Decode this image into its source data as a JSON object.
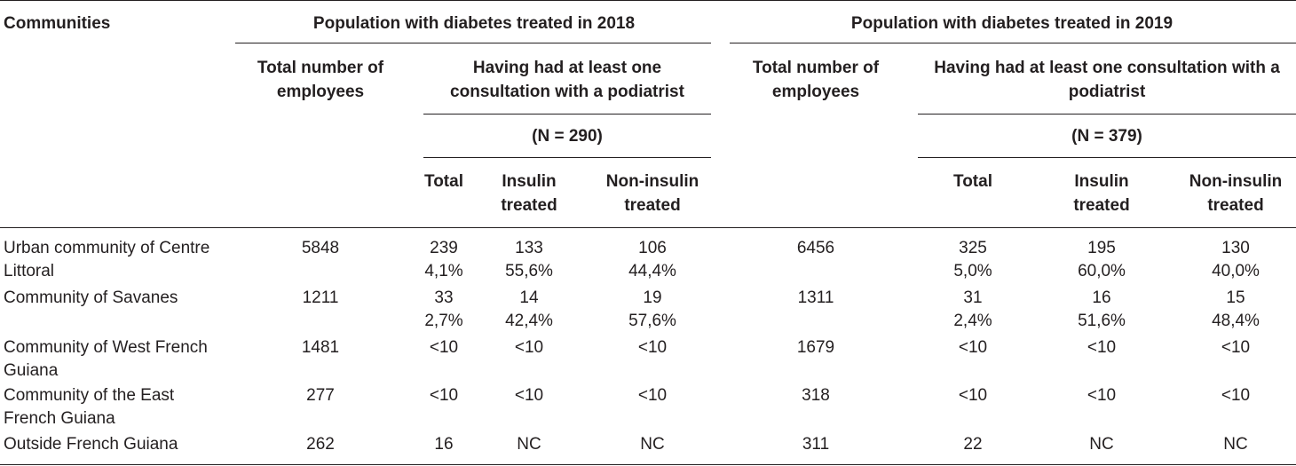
{
  "headers": {
    "communities": "Communities",
    "group_2018": "Population with diabetes treated in 2018",
    "group_2019": "Population with diabetes treated in 2019",
    "total_employees_line1": "Total number of",
    "total_employees_line2": "employees",
    "consult_2018_line1": "Having had at least one",
    "consult_2018_line2": "consultation with a podiatrist",
    "consult_2019_line1": "Having had at least one consultation with a",
    "consult_2019_line2": "podiatrist",
    "n_2018": "(N = 290)",
    "n_2019": "(N = 379)",
    "total": "Total",
    "insulin_line1": "Insulin",
    "insulin_line2": "treated",
    "noninsulin_line1": "Non-insulin",
    "noninsulin_line2": "treated"
  },
  "rows": [
    {
      "name_line1": "Urban community of Centre",
      "name_line2": "Littoral",
      "emp_2018": "5848",
      "tot_2018": "239",
      "tot_2018_pct": "4,1%",
      "ins_2018": "133",
      "ins_2018_pct": "55,6%",
      "non_2018": "106",
      "non_2018_pct": "44,4%",
      "emp_2019": "6456",
      "tot_2019": "325",
      "tot_2019_pct": "5,0%",
      "ins_2019": "195",
      "ins_2019_pct": "60,0%",
      "non_2019": "130",
      "non_2019_pct": "40,0%"
    },
    {
      "name_line1": "Community of Savanes",
      "name_line2": "",
      "emp_2018": "1211",
      "tot_2018": "33",
      "tot_2018_pct": "2,7%",
      "ins_2018": "14",
      "ins_2018_pct": "42,4%",
      "non_2018": "19",
      "non_2018_pct": "57,6%",
      "emp_2019": "1311",
      "tot_2019": "31",
      "tot_2019_pct": "2,4%",
      "ins_2019": "16",
      "ins_2019_pct": "51,6%",
      "non_2019": "15",
      "non_2019_pct": "48,4%"
    },
    {
      "name_line1": "Community of West French",
      "name_line2": "Guiana",
      "emp_2018": "1481",
      "tot_2018": "<10",
      "tot_2018_pct": "",
      "ins_2018": "<10",
      "ins_2018_pct": "",
      "non_2018": "<10",
      "non_2018_pct": "",
      "emp_2019": "1679",
      "tot_2019": "<10",
      "tot_2019_pct": "",
      "ins_2019": "<10",
      "ins_2019_pct": "",
      "non_2019": "<10",
      "non_2019_pct": ""
    },
    {
      "name_line1": "Community of the East",
      "name_line2": "French Guiana",
      "emp_2018": "277",
      "tot_2018": "<10",
      "tot_2018_pct": "",
      "ins_2018": "<10",
      "ins_2018_pct": "",
      "non_2018": "<10",
      "non_2018_pct": "",
      "emp_2019": "318",
      "tot_2019": "<10",
      "tot_2019_pct": "",
      "ins_2019": "<10",
      "ins_2019_pct": "",
      "non_2019": "<10",
      "non_2019_pct": ""
    },
    {
      "name_line1": "Outside French Guiana",
      "name_line2": "",
      "emp_2018": "262",
      "tot_2018": "16",
      "tot_2018_pct": "",
      "ins_2018": "NC",
      "ins_2018_pct": "",
      "non_2018": "NC",
      "non_2018_pct": "",
      "emp_2019": "311",
      "tot_2019": "22",
      "tot_2019_pct": "",
      "ins_2019": "NC",
      "ins_2019_pct": "",
      "non_2019": "NC",
      "non_2019_pct": ""
    }
  ]
}
